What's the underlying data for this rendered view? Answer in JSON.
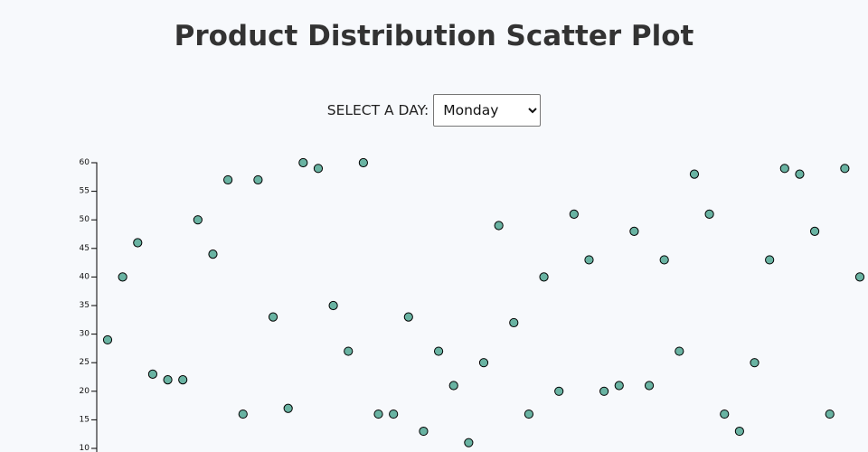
{
  "page": {
    "title": "Product Distribution Scatter Plot"
  },
  "controls": {
    "day_label": "SELECT A DAY:",
    "day_selected": "Monday"
  },
  "colors": {
    "point_fill": "#69b3a2",
    "point_stroke": "#000000",
    "axis": "#000000"
  },
  "chart_data": {
    "type": "scatter",
    "title": "Product Distribution Scatter Plot",
    "xlabel": "",
    "ylabel": "",
    "ylim": [
      10,
      60
    ],
    "yticks": [
      10,
      15,
      20,
      25,
      30,
      35,
      40,
      45,
      50,
      55,
      60
    ],
    "x": [
      1,
      2,
      3,
      4,
      5,
      6,
      7,
      8,
      9,
      10,
      11,
      12,
      13,
      14,
      15,
      16,
      17,
      18,
      19,
      20,
      21,
      22,
      23,
      24,
      25,
      26,
      27,
      28,
      29,
      30,
      31,
      32,
      33,
      34,
      35,
      36,
      37,
      38,
      39,
      40,
      41,
      42,
      43,
      44,
      45,
      46,
      47,
      48,
      49,
      50,
      51
    ],
    "y": [
      29,
      40,
      46,
      23,
      22,
      22,
      50,
      44,
      57,
      16,
      57,
      33,
      17,
      60,
      59,
      35,
      27,
      60,
      16,
      16,
      33,
      13,
      27,
      21,
      11,
      25,
      49,
      32,
      16,
      40,
      20,
      51,
      43,
      20,
      21,
      48,
      21,
      43,
      27,
      58,
      51,
      16,
      13,
      25,
      43,
      59,
      58,
      48,
      16,
      59,
      40
    ],
    "grid": false,
    "legend": "none"
  }
}
